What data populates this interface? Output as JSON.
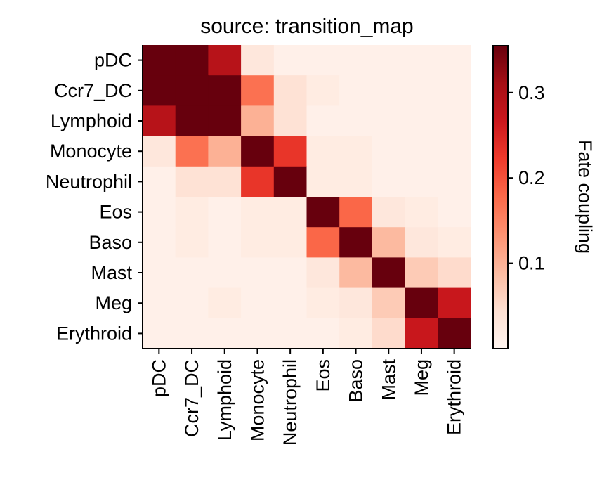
{
  "chart_data": {
    "type": "heatmap",
    "title": "source: transition_map",
    "row_labels": [
      "pDC",
      "Ccr7_DC",
      "Lymphoid",
      "Monocyte",
      "Neutrophil",
      "Eos",
      "Baso",
      "Mast",
      "Meg",
      "Erythroid"
    ],
    "col_labels": [
      "pDC",
      "Ccr7_DC",
      "Lymphoid",
      "Monocyte",
      "Neutrophil",
      "Eos",
      "Baso",
      "Mast",
      "Meg",
      "Erythroid"
    ],
    "values": [
      [
        0.36,
        0.36,
        0.29,
        0.03,
        0.01,
        0.01,
        0.01,
        0.01,
        0.01,
        0.01
      ],
      [
        0.36,
        0.36,
        0.36,
        0.17,
        0.04,
        0.02,
        0.01,
        0.01,
        0.01,
        0.01
      ],
      [
        0.29,
        0.36,
        0.36,
        0.1,
        0.04,
        0.01,
        0.01,
        0.01,
        0.01,
        0.01
      ],
      [
        0.03,
        0.17,
        0.1,
        0.36,
        0.23,
        0.02,
        0.02,
        0.01,
        0.01,
        0.01
      ],
      [
        0.01,
        0.04,
        0.04,
        0.23,
        0.36,
        0.02,
        0.02,
        0.01,
        0.01,
        0.01
      ],
      [
        0.01,
        0.02,
        0.01,
        0.02,
        0.02,
        0.36,
        0.18,
        0.03,
        0.02,
        0.01
      ],
      [
        0.01,
        0.02,
        0.01,
        0.02,
        0.02,
        0.18,
        0.36,
        0.09,
        0.03,
        0.02
      ],
      [
        0.01,
        0.01,
        0.01,
        0.01,
        0.01,
        0.03,
        0.09,
        0.36,
        0.07,
        0.05
      ],
      [
        0.01,
        0.01,
        0.02,
        0.01,
        0.01,
        0.02,
        0.03,
        0.07,
        0.36,
        0.27
      ],
      [
        0.01,
        0.01,
        0.01,
        0.01,
        0.01,
        0.01,
        0.02,
        0.05,
        0.27,
        0.36
      ]
    ],
    "colormap": "Reds",
    "color_stops": [
      "#fff5f0",
      "#fee0d2",
      "#fcbba1",
      "#fc9272",
      "#fb6a4a",
      "#ef3b2c",
      "#cb181d",
      "#a50f15",
      "#67000d"
    ],
    "vmin": 0.0,
    "vmax": 0.355,
    "colorbar": {
      "label": "Fate coupling",
      "ticks": [
        0.1,
        0.2,
        0.3
      ],
      "tick_labels": [
        "0.1",
        "0.2",
        "0.3"
      ],
      "placement": "right"
    },
    "grid": false
  }
}
